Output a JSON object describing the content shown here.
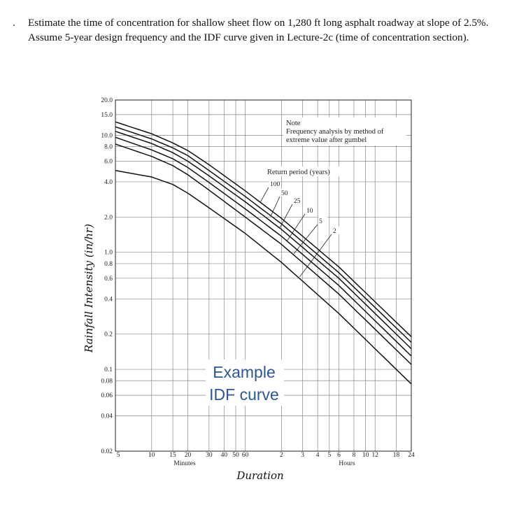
{
  "question": {
    "bullet": ".",
    "text": "Estimate the time of concentration for shallow sheet flow on 1,280 ft long asphalt roadway at slope of 2.5%. Assume 5-year design frequency and the IDF curve given in Lecture-2c (time of concentration section)."
  },
  "chart_data": {
    "type": "line",
    "ylabel": "Rainfall Intensity (in/hr)",
    "xlabel": "Duration",
    "x_scale": "log",
    "y_scale": "log",
    "y_ticks": [
      {
        "value": 20.0,
        "label": "20.0"
      },
      {
        "value": 15.0,
        "label": "15.0"
      },
      {
        "value": 10.0,
        "label": "10.0"
      },
      {
        "value": 8.0,
        "label": "8.0"
      },
      {
        "value": 6.0,
        "label": "6.0"
      },
      {
        "value": 4.0,
        "label": "4.0"
      },
      {
        "value": 2.0,
        "label": "2.0"
      },
      {
        "value": 1.0,
        "label": "1.0"
      },
      {
        "value": 0.8,
        "label": "0.8"
      },
      {
        "value": 0.6,
        "label": "0.6"
      },
      {
        "value": 0.4,
        "label": "0.4"
      },
      {
        "value": 0.2,
        "label": "0.2"
      },
      {
        "value": 0.1,
        "label": "0.1"
      },
      {
        "value": 0.08,
        "label": "0.08"
      },
      {
        "value": 0.06,
        "label": "0.06"
      },
      {
        "value": 0.04,
        "label": "0.04"
      },
      {
        "value": 0.02,
        "label": "0.02"
      }
    ],
    "x_ticks": [
      {
        "minutes": 5,
        "label": "5"
      },
      {
        "minutes": 10,
        "label": "10"
      },
      {
        "minutes": 15,
        "label": "15"
      },
      {
        "minutes": 20,
        "label": "20"
      },
      {
        "minutes": 30,
        "label": "30"
      },
      {
        "minutes": 40,
        "label": "40"
      },
      {
        "minutes": 50,
        "label": "50"
      },
      {
        "minutes": 60,
        "label": "60"
      },
      {
        "minutes": 120,
        "label": "2"
      },
      {
        "minutes": 180,
        "label": "3"
      },
      {
        "minutes": 240,
        "label": "4"
      },
      {
        "minutes": 300,
        "label": "5"
      },
      {
        "minutes": 360,
        "label": "6"
      },
      {
        "minutes": 480,
        "label": "8"
      },
      {
        "minutes": 600,
        "label": "10"
      },
      {
        "minutes": 720,
        "label": "12"
      },
      {
        "minutes": 1080,
        "label": "18"
      },
      {
        "minutes": 1440,
        "label": "24"
      }
    ],
    "x_group_labels": {
      "minutes": "Minutes",
      "hours": "Hours"
    },
    "xlim_minutes": [
      5,
      1440
    ],
    "ylim": [
      0.02,
      20
    ],
    "grid": true,
    "note": {
      "title": "Note",
      "line1": "Frequency analysis by method of",
      "line2": "extreme value after gumbel"
    },
    "return_period_label": "Return period (years)",
    "overlay_text": [
      "Example",
      "IDF curve"
    ],
    "series": [
      {
        "name": "100",
        "x_minutes": [
          5,
          10,
          15,
          20,
          30,
          60,
          120,
          360,
          1440
        ],
        "values": [
          13.0,
          10.3,
          8.6,
          7.4,
          5.6,
          3.35,
          1.95,
          0.75,
          0.19
        ]
      },
      {
        "name": "50",
        "x_minutes": [
          5,
          10,
          15,
          20,
          30,
          60,
          120,
          360,
          1440
        ],
        "values": [
          11.8,
          9.3,
          7.8,
          6.7,
          5.0,
          3.0,
          1.75,
          0.67,
          0.17
        ]
      },
      {
        "name": "25",
        "x_minutes": [
          5,
          10,
          15,
          20,
          30,
          60,
          120,
          360,
          1440
        ],
        "values": [
          10.8,
          8.5,
          7.1,
          6.0,
          4.5,
          2.7,
          1.57,
          0.6,
          0.15
        ]
      },
      {
        "name": "10",
        "x_minutes": [
          5,
          10,
          15,
          20,
          30,
          60,
          120,
          360,
          1440
        ],
        "values": [
          9.6,
          7.5,
          6.3,
          5.3,
          3.95,
          2.35,
          1.37,
          0.52,
          0.13
        ]
      },
      {
        "name": "5",
        "x_minutes": [
          5,
          10,
          15,
          20,
          30,
          60,
          120,
          360,
          1440
        ],
        "values": [
          8.4,
          6.6,
          5.5,
          4.6,
          3.4,
          2.0,
          1.17,
          0.44,
          0.11
        ]
      },
      {
        "name": "2",
        "x_minutes": [
          5,
          10,
          15,
          20,
          30,
          60,
          120,
          360,
          1440
        ],
        "values": [
          5.0,
          4.4,
          3.8,
          3.2,
          2.4,
          1.45,
          0.82,
          0.3,
          0.075
        ]
      }
    ]
  }
}
